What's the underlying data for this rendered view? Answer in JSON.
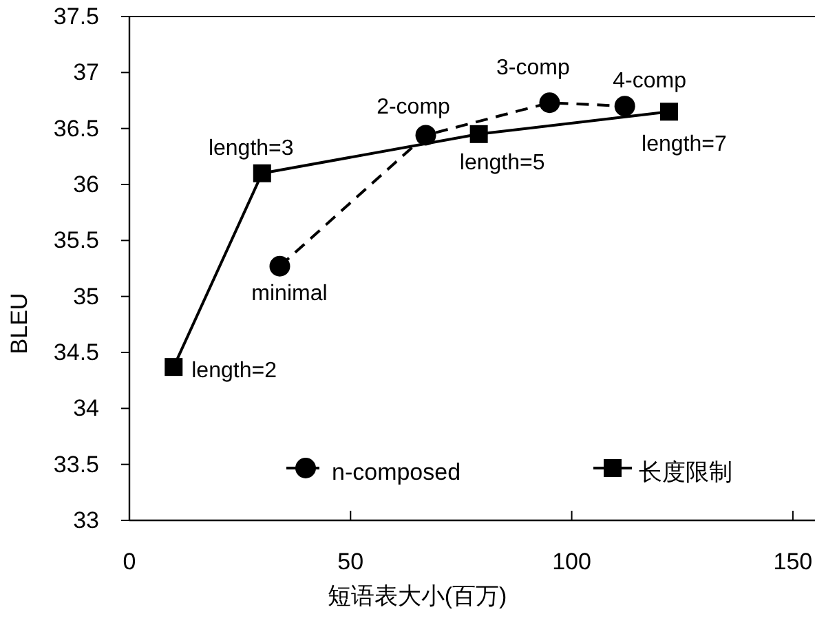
{
  "chart_data": {
    "type": "line",
    "xlabel": "短语表大小(百万)",
    "ylabel": "BLEU",
    "xlim": [
      0,
      155
    ],
    "xticks": [
      0,
      50,
      100,
      150
    ],
    "ylim": [
      33,
      37.5
    ],
    "yticks": [
      33,
      33.5,
      34,
      34.5,
      35,
      35.5,
      36,
      36.5,
      37,
      37.5
    ],
    "grid": false,
    "legend": "bottom",
    "series": [
      {
        "name": "n-composed",
        "color": "#000000",
        "marker": "circle",
        "line_style": "dashed",
        "x": [
          34,
          67,
          95,
          112
        ],
        "values": [
          35.27,
          36.44,
          36.73,
          36.7
        ]
      },
      {
        "name": "长度限制",
        "color": "#000000",
        "marker": "square",
        "line_style": "solid",
        "x": [
          10,
          30,
          79,
          122
        ],
        "values": [
          34.37,
          36.1,
          36.45,
          36.65
        ]
      }
    ],
    "annotations": [
      {
        "text": "length=2",
        "x": 10,
        "y": 34.37
      },
      {
        "text": "length=3",
        "x": 30,
        "y": 36.1
      },
      {
        "text": "length=5",
        "x": 79,
        "y": 36.45
      },
      {
        "text": "length=7",
        "x": 122,
        "y": 36.65
      },
      {
        "text": "minimal",
        "x": 34,
        "y": 35.27
      },
      {
        "text": "2-comp",
        "x": 67,
        "y": 36.44
      },
      {
        "text": "3-comp",
        "x": 95,
        "y": 36.73
      },
      {
        "text": "4-comp",
        "x": 112,
        "y": 36.7
      }
    ]
  }
}
